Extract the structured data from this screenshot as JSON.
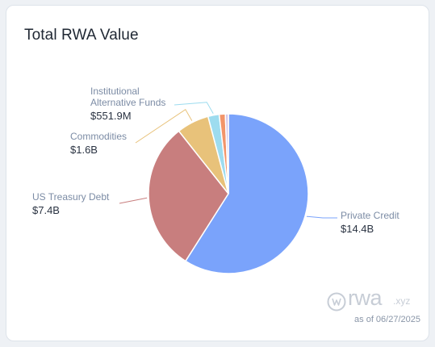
{
  "title": "Total RWA Value",
  "as_of": "as of 06/27/2025",
  "brand": {
    "name": "rwa",
    "tld": ".xyz"
  },
  "chart_data": {
    "type": "pie",
    "title": "Total RWA Value",
    "slices": [
      {
        "label": "Private Credit",
        "value_label": "$14.4B",
        "value": 14.4,
        "color": "#7aa3fb"
      },
      {
        "label": "US Treasury Debt",
        "value_label": "$7.4B",
        "value": 7.4,
        "color": "#c87e7e"
      },
      {
        "label": "Commodities",
        "value_label": "$1.6B",
        "value": 1.6,
        "color": "#e8c27a"
      },
      {
        "label": "Institutional Alternative Funds",
        "value_label": "$551.9M",
        "value": 0.5519,
        "color": "#9ddcef"
      },
      {
        "label": "",
        "value_label": "",
        "value": 0.3,
        "color": "#f2956a"
      },
      {
        "label": "",
        "value_label": "",
        "value": 0.15,
        "color": "#d6c6e8"
      }
    ]
  }
}
